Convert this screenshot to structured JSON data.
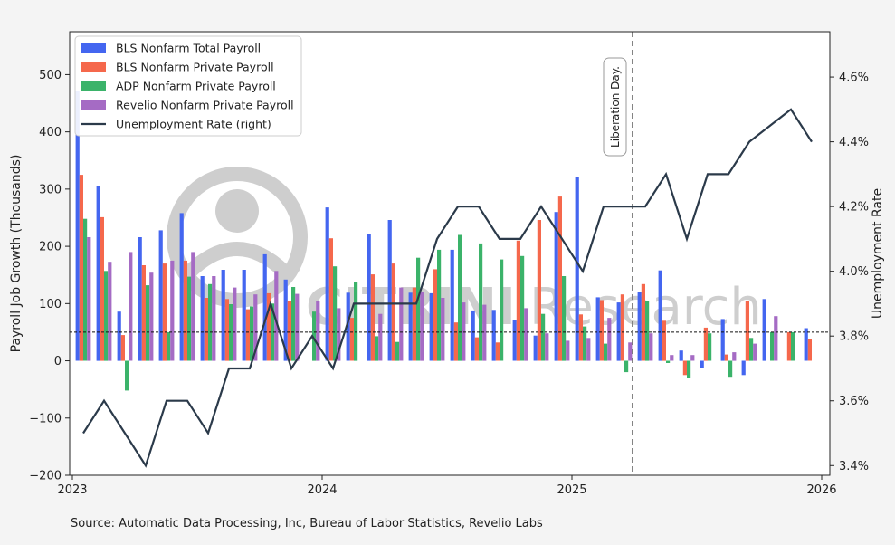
{
  "chart_data": {
    "type": "bar",
    "ylabel": "Payroll Job Growth (Thousands)",
    "y2label": "Unemployment Rate",
    "ylim": [
      -200,
      575
    ],
    "y2lim": [
      3.37,
      4.74
    ],
    "xlim": [
      2023.0,
      2026.0
    ],
    "y_ticks": [
      -200,
      -100,
      0,
      100,
      200,
      300,
      400,
      500
    ],
    "y_tick_labels": [
      "−200",
      "−100",
      "0",
      "100",
      "200",
      "300",
      "400",
      "500"
    ],
    "y2_ticks": [
      3.4,
      3.6,
      3.8,
      4.0,
      4.2,
      4.4,
      4.6
    ],
    "y2_tick_labels": [
      "3.4%",
      "3.6%",
      "3.8%",
      "4.0%",
      "4.2%",
      "4.4%",
      "4.6%"
    ],
    "x_ticks": [
      2023,
      2024,
      2025,
      2026
    ],
    "x_tick_labels": [
      "2023",
      "2024",
      "2025",
      "2026"
    ],
    "months": [
      "2023-01",
      "2023-02",
      "2023-03",
      "2023-04",
      "2023-05",
      "2023-06",
      "2023-07",
      "2023-08",
      "2023-09",
      "2023-10",
      "2023-11",
      "2023-12",
      "2024-01",
      "2024-02",
      "2024-03",
      "2024-04",
      "2024-05",
      "2024-06",
      "2024-07",
      "2024-08",
      "2024-09",
      "2024-10",
      "2024-11",
      "2024-12",
      "2025-01",
      "2025-02",
      "2025-03",
      "2025-04",
      "2025-05",
      "2025-06",
      "2025-07",
      "2025-08",
      "2025-09",
      "2025-10",
      "2025-11",
      "2025-12"
    ],
    "series": [
      {
        "name": "BLS Nonfarm Total Payroll",
        "color": "#4466f0",
        "values": [
          472,
          306,
          86,
          216,
          228,
          258,
          148,
          159,
          159,
          186,
          142,
          0,
          268,
          119,
          222,
          246,
          119,
          118,
          194,
          88,
          89,
          72,
          44,
          260,
          322,
          111,
          102,
          120,
          158,
          18,
          -13,
          73,
          -25,
          108,
          0,
          57
        ]
      },
      {
        "name": "BLS Nonfarm Private Payroll",
        "color": "#f5684c",
        "values": [
          325,
          251,
          45,
          167,
          170,
          175,
          110,
          108,
          90,
          118,
          104,
          0,
          214,
          75,
          151,
          170,
          128,
          160,
          67,
          41,
          32,
          210,
          246,
          287,
          81,
          106,
          116,
          134,
          70,
          -25,
          58,
          11,
          104,
          0,
          50,
          38
        ]
      },
      {
        "name": "ADP Nonfarm Private Payroll",
        "color": "#3bb36a",
        "values": [
          248,
          157,
          -52,
          132,
          50,
          147,
          134,
          99,
          95,
          100,
          129,
          86,
          165,
          138,
          43,
          33,
          180,
          194,
          220,
          205,
          177,
          183,
          82,
          148,
          60,
          30,
          -20,
          104,
          -4,
          -30,
          48,
          -28,
          40,
          50,
          50,
          0
        ]
      },
      {
        "name": "Revelio Nonfarm Private Payroll",
        "color": "#a56bc4",
        "values": [
          216,
          173,
          190,
          154,
          175,
          190,
          148,
          128,
          116,
          157,
          117,
          104,
          92,
          0,
          82,
          128,
          120,
          110,
          102,
          98,
          0,
          92,
          48,
          35,
          40,
          75,
          32,
          48,
          10,
          10,
          0,
          15,
          30,
          78,
          0,
          0
        ]
      }
    ],
    "line": {
      "name": "Unemployment Rate (right)",
      "color": "#2b3a4a",
      "x": [
        "2023-01",
        "2023-02",
        "2023-03",
        "2023-04",
        "2023-05",
        "2023-06",
        "2023-07",
        "2023-08",
        "2023-09",
        "2023-10",
        "2023-11",
        "2023-12",
        "2024-01",
        "2024-02",
        "2024-03",
        "2024-04",
        "2024-05",
        "2024-06",
        "2024-07",
        "2024-08",
        "2024-09",
        "2024-10",
        "2024-11",
        "2024-12",
        "2025-01",
        "2025-02",
        "2025-03",
        "2025-04",
        "2025-05",
        "2025-06",
        "2025-07",
        "2025-08",
        "2025-09",
        "2025-10",
        "2025-11",
        "2025-12"
      ],
      "values": [
        3.5,
        3.6,
        3.5,
        3.4,
        3.6,
        3.6,
        3.5,
        3.7,
        3.7,
        3.9,
        3.7,
        3.8,
        3.7,
        3.9,
        3.9,
        3.9,
        3.9,
        4.1,
        4.2,
        4.2,
        4.1,
        4.1,
        4.2,
        4.1,
        4.0,
        4.2,
        4.2,
        4.2,
        4.3,
        4.1,
        4.3,
        4.3,
        4.4,
        4.45,
        4.5,
        4.4
      ]
    },
    "hline": {
      "y": 50
    },
    "annotation": {
      "text": "Liberation Day.",
      "x": "2025-04"
    },
    "legend_position": "top-left",
    "watermark": "CITRINI Research"
  },
  "source": "Source: Automatic Data Processing, Inc, Bureau of Labor Statistics, Revelio Labs"
}
